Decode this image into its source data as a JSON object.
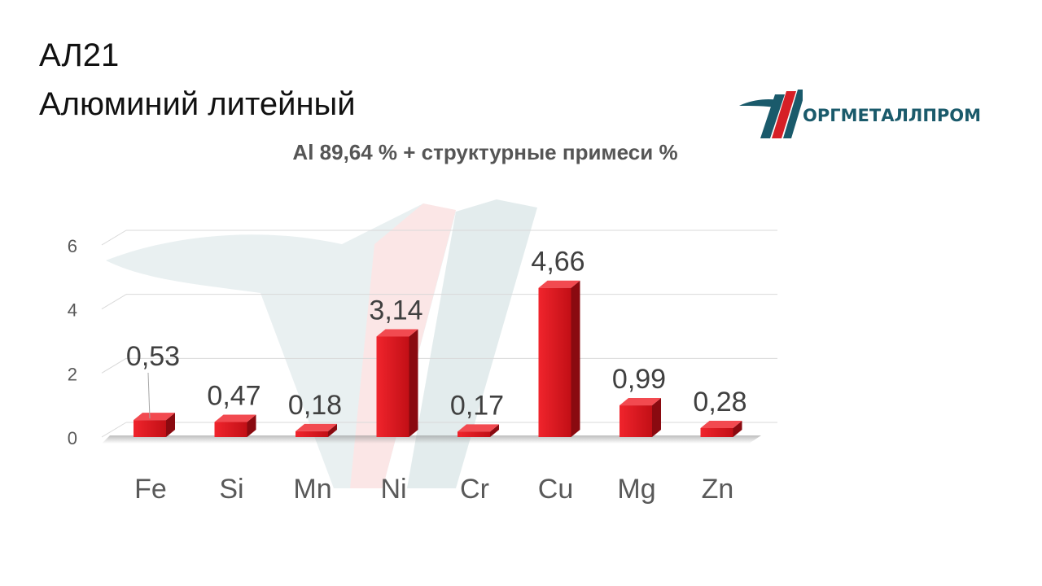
{
  "header": {
    "grade": "АЛ21",
    "material": "Алюминий литейный"
  },
  "logo": {
    "text": "ОРГМЕТАЛЛПРОМ"
  },
  "colors": {
    "bar": "#e0141c",
    "bar_dark": "#8a0a10",
    "logo_red": "#d61f26",
    "logo_teal": "#1a5a6b"
  },
  "chart_data": {
    "type": "bar",
    "title": "Al 89,64 % + структурные примеси %",
    "categories": [
      "Fe",
      "Si",
      "Mn",
      "Ni",
      "Cr",
      "Cu",
      "Mg",
      "Zn"
    ],
    "values": [
      0.53,
      0.47,
      0.18,
      3.14,
      0.17,
      4.66,
      0.99,
      0.28
    ],
    "value_labels": [
      "0,53",
      "0,47",
      "0,18",
      "3,14",
      "0,17",
      "4,66",
      "0,99",
      "0,28"
    ],
    "yticks": [
      "0",
      "2",
      "4",
      "6"
    ],
    "ylim": [
      0,
      6
    ],
    "grid": true,
    "legend": false,
    "xlabel": "",
    "ylabel": ""
  }
}
